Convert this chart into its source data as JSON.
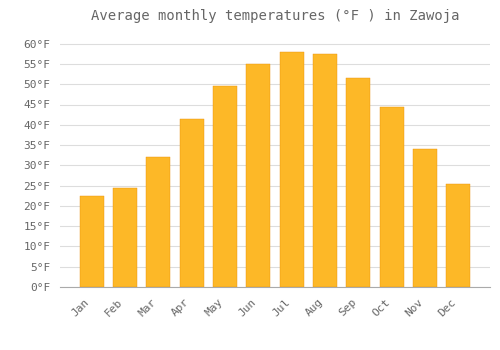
{
  "title": "Average monthly temperatures (°F ) in Zawoja",
  "months": [
    "Jan",
    "Feb",
    "Mar",
    "Apr",
    "May",
    "Jun",
    "Jul",
    "Aug",
    "Sep",
    "Oct",
    "Nov",
    "Dec"
  ],
  "values": [
    22.5,
    24.5,
    32.0,
    41.5,
    49.5,
    55.0,
    58.0,
    57.5,
    51.5,
    44.5,
    34.0,
    25.5
  ],
  "bar_color_top": "#FDB827",
  "bar_color_bottom": "#F5A010",
  "background_color": "#FFFFFF",
  "grid_color": "#DDDDDD",
  "text_color": "#666666",
  "ylim": [
    0,
    63
  ],
  "yticks": [
    0,
    5,
    10,
    15,
    20,
    25,
    30,
    35,
    40,
    45,
    50,
    55,
    60
  ],
  "title_fontsize": 10,
  "tick_fontsize": 8,
  "bar_width": 0.72
}
